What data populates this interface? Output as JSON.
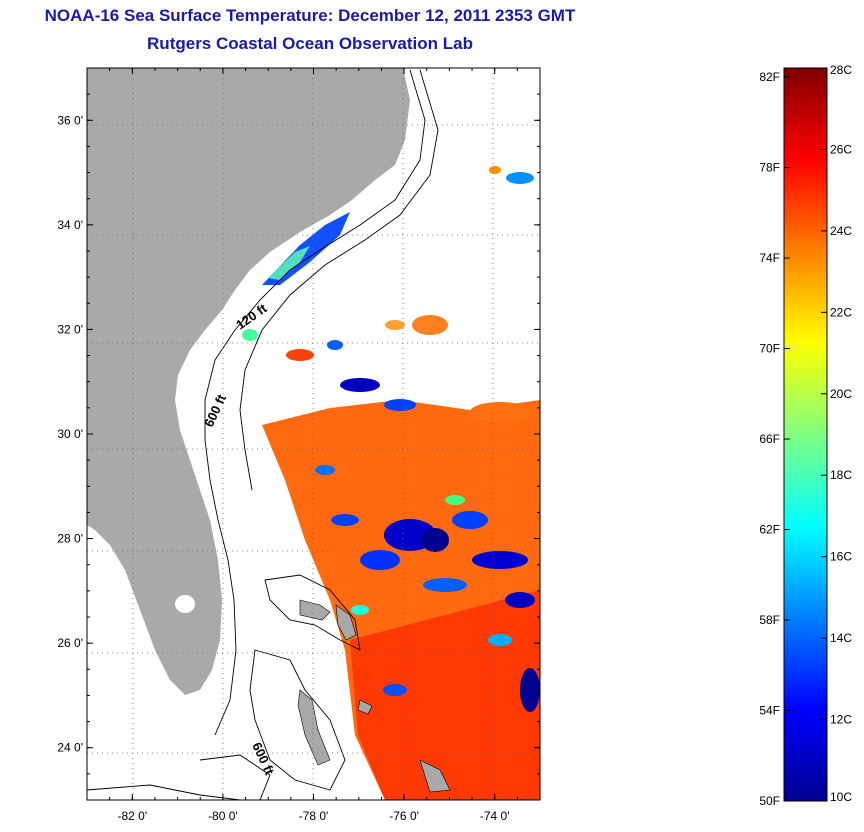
{
  "title": "NOAA-16 Sea Surface Temperature:  December 12, 2011 2353 GMT",
  "subtitle": "Rutgers Coastal Ocean Observation Lab",
  "map": {
    "lon_range": [
      -83,
      -73
    ],
    "lat_range": [
      23,
      37
    ],
    "lon_ticks": [
      {
        "value": -82,
        "label": "-82 0'"
      },
      {
        "value": -80,
        "label": "-80 0'"
      },
      {
        "value": -78,
        "label": "-78 0'"
      },
      {
        "value": -76,
        "label": "-76 0'"
      },
      {
        "value": -74,
        "label": "-74 0'"
      }
    ],
    "lat_ticks": [
      {
        "value": 24,
        "label": "24 0'"
      },
      {
        "value": 26,
        "label": "26 0'"
      },
      {
        "value": 28,
        "label": "28 0'"
      },
      {
        "value": 30,
        "label": "30 0'"
      },
      {
        "value": 32,
        "label": "32 0'"
      },
      {
        "value": 34,
        "label": "34 0'"
      },
      {
        "value": 36,
        "label": "36 0'"
      }
    ],
    "contour_labels": [
      "120 ft",
      "600 ft",
      "600 ft"
    ],
    "land_color": "#a9a9a9",
    "grid_style": "dotted"
  },
  "colorbar": {
    "range_c": [
      10,
      28
    ],
    "celsius_ticks": [
      "28C",
      "26C",
      "24C",
      "22C",
      "20C",
      "18C",
      "16C",
      "14C",
      "12C",
      "10C"
    ],
    "fahrenheit_ticks": [
      "82F",
      "78F",
      "74F",
      "70F",
      "66F",
      "62F",
      "58F",
      "54F",
      "50F"
    ],
    "colors": [
      "#00008f",
      "#0000ff",
      "#0080ff",
      "#00ffff",
      "#80ff80",
      "#ffff00",
      "#ff8000",
      "#ff0000",
      "#800000"
    ]
  }
}
